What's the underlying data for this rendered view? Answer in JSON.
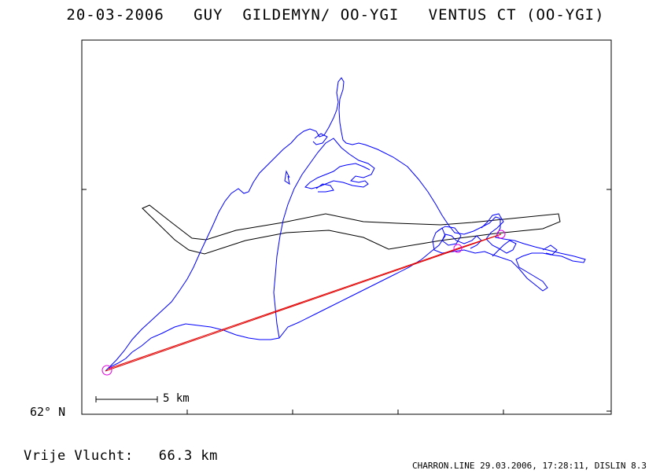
{
  "title": "20-03-2006   GUY  GILDEMYN/ OO-YGI   VENTUS CT (OO-YGI)",
  "scale_label": "5 km",
  "latitude_label": "62° N",
  "distance": {
    "text": "Vrije Vlucht:   66.3 km"
  },
  "footer": "CHARRON.LINE 29.03.2006, 17:28:11, DISLIN 8.3",
  "colors": {
    "background": "#ffffff",
    "frame": "#000000",
    "track": "#0000ff",
    "task_line": "#e00000",
    "turnpoint": "#e000e0",
    "airspace": "#000000"
  }
}
